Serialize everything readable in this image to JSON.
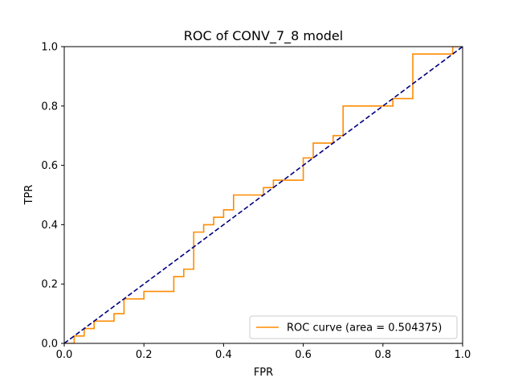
{
  "chart_data": {
    "type": "line",
    "title": "ROC of CONV_7_8 model",
    "xlabel": "FPR",
    "ylabel": "TPR",
    "xlim": [
      0.0,
      1.0
    ],
    "ylim": [
      0.0,
      1.0
    ],
    "xticks": [
      "0.0",
      "0.2",
      "0.4",
      "0.6",
      "0.8",
      "1.0"
    ],
    "yticks": [
      "0.0",
      "0.2",
      "0.4",
      "0.6",
      "0.8",
      "1.0"
    ],
    "grid": false,
    "legend_position": "lower-right",
    "series": [
      {
        "name": "ROC curve (area = 0.504375)",
        "color": "#ff8c00",
        "style": "solid",
        "x": [
          0.0,
          0.025,
          0.025,
          0.05,
          0.05,
          0.075,
          0.075,
          0.125,
          0.125,
          0.15,
          0.15,
          0.2,
          0.2,
          0.275,
          0.275,
          0.3,
          0.3,
          0.325,
          0.325,
          0.35,
          0.35,
          0.375,
          0.375,
          0.4,
          0.4,
          0.425,
          0.425,
          0.5,
          0.5,
          0.525,
          0.525,
          0.6,
          0.6,
          0.625,
          0.625,
          0.675,
          0.675,
          0.7,
          0.7,
          0.825,
          0.825,
          0.875,
          0.875,
          0.975,
          0.975,
          1.0,
          1.0
        ],
        "y": [
          0.0,
          0.0,
          0.025,
          0.025,
          0.05,
          0.05,
          0.075,
          0.075,
          0.1,
          0.1,
          0.15,
          0.15,
          0.175,
          0.175,
          0.225,
          0.225,
          0.25,
          0.25,
          0.375,
          0.375,
          0.4,
          0.4,
          0.425,
          0.425,
          0.45,
          0.45,
          0.5,
          0.5,
          0.525,
          0.525,
          0.55,
          0.55,
          0.625,
          0.625,
          0.675,
          0.675,
          0.7,
          0.7,
          0.8,
          0.8,
          0.825,
          0.825,
          0.975,
          0.975,
          1.0,
          1.0,
          1.0
        ]
      },
      {
        "name": "",
        "color": "#000080",
        "style": "dashed",
        "x": [
          0.0,
          1.0
        ],
        "y": [
          0.0,
          1.0
        ]
      }
    ]
  }
}
